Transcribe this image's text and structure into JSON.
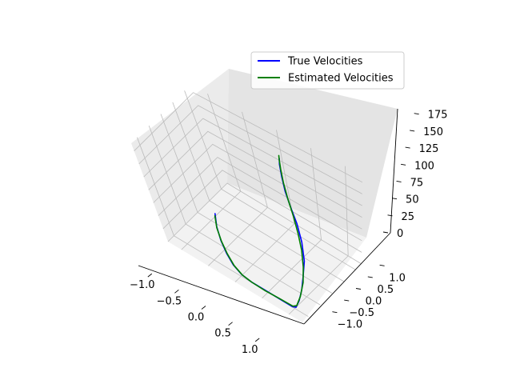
{
  "chart_data": {
    "type": "line",
    "projection": "3d",
    "title": "",
    "xlabel": "",
    "ylabel": "",
    "zlabel": "",
    "xlim": [
      -1.25,
      1.25
    ],
    "ylim": [
      -1.25,
      1.25
    ],
    "zlim": [
      0,
      190
    ],
    "xticks": [
      -1.0,
      -0.5,
      0.0,
      0.5,
      1.0
    ],
    "xtick_labels": [
      "−1.0",
      "−0.5",
      "0.0",
      "0.5",
      "1.0"
    ],
    "yticks": [
      -1.0,
      -0.5,
      0.0,
      0.5,
      1.0
    ],
    "ytick_labels": [
      "−1.0",
      "−0.5",
      "0.0",
      "0.5",
      "1.0"
    ],
    "zticks": [
      0,
      25,
      50,
      75,
      100,
      125,
      150,
      175
    ],
    "ztick_labels": [
      "0",
      "25",
      "50",
      "75",
      "100",
      "125",
      "150",
      "175"
    ],
    "grid": true,
    "legend_position": "top-right",
    "series": [
      {
        "name": "True Velocities",
        "color": "#0000ff",
        "points": [
          [
            -0.97,
            0.16,
            8
          ],
          [
            -0.8,
            -0.16,
            8
          ],
          [
            -0.6,
            -0.45,
            7
          ],
          [
            -0.4,
            -0.68,
            5
          ],
          [
            -0.2,
            -0.86,
            3
          ],
          [
            0.0,
            -0.97,
            2
          ],
          [
            0.2,
            -1.0,
            1
          ],
          [
            0.45,
            -1.0,
            1
          ],
          [
            0.7,
            -0.99,
            0
          ],
          [
            0.95,
            -0.99,
            0
          ],
          [
            1.0,
            -0.95,
            0
          ],
          [
            0.97,
            -0.75,
            2
          ],
          [
            0.9,
            -0.48,
            6
          ],
          [
            0.8,
            -0.18,
            13
          ],
          [
            0.7,
            0.12,
            24
          ],
          [
            0.55,
            0.4,
            40
          ],
          [
            0.4,
            0.6,
            58
          ],
          [
            0.25,
            0.75,
            76
          ],
          [
            0.15,
            0.85,
            95
          ],
          [
            0.1,
            0.92,
            118
          ],
          [
            0.08,
            0.96,
            140
          ],
          [
            0.09,
            0.97,
            152
          ]
        ]
      },
      {
        "name": "Estimated Velocities",
        "color": "#008000",
        "points": [
          [
            -0.97,
            0.13,
            5
          ],
          [
            -0.8,
            -0.17,
            6
          ],
          [
            -0.6,
            -0.44,
            5
          ],
          [
            -0.4,
            -0.66,
            3
          ],
          [
            -0.2,
            -0.84,
            1
          ],
          [
            0.0,
            -0.95,
            0
          ],
          [
            0.2,
            -0.99,
            0
          ],
          [
            0.45,
            -1.0,
            0
          ],
          [
            0.7,
            -0.98,
            0
          ],
          [
            0.95,
            -0.97,
            0
          ],
          [
            1.0,
            -0.92,
            2
          ],
          [
            0.95,
            -0.65,
            5
          ],
          [
            0.85,
            -0.3,
            10
          ],
          [
            0.72,
            0.02,
            18
          ],
          [
            0.58,
            0.3,
            30
          ],
          [
            0.45,
            0.5,
            45
          ],
          [
            0.32,
            0.67,
            64
          ],
          [
            0.2,
            0.8,
            87
          ],
          [
            0.13,
            0.88,
            110
          ],
          [
            0.1,
            0.93,
            133
          ],
          [
            0.09,
            0.96,
            150
          ],
          [
            0.09,
            0.97,
            158
          ]
        ]
      }
    ]
  },
  "legend": {
    "items": [
      {
        "label": "True Velocities",
        "color": "#0000ff"
      },
      {
        "label": "Estimated Velocities",
        "color": "#008000"
      }
    ]
  },
  "colors": {
    "pane_left": "#ebebeb",
    "pane_right": "#e4e4e4",
    "pane_floor": "#f2f2f2",
    "grid": "#bbbbbb"
  }
}
